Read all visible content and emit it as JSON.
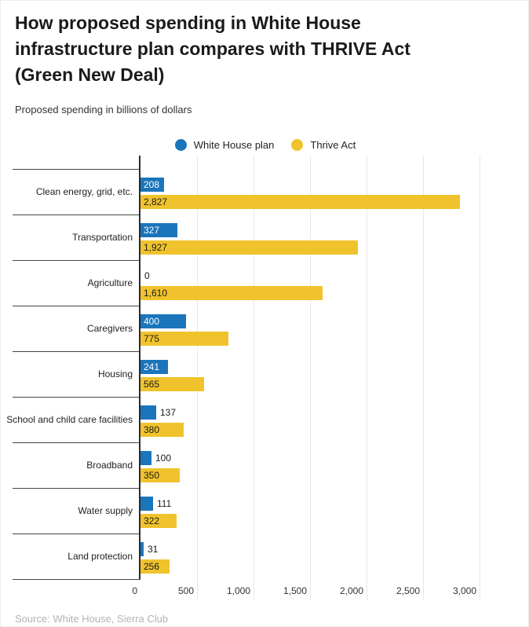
{
  "chart_data": {
    "type": "bar",
    "orientation": "horizontal",
    "title": "How proposed spending in White House infrastructure plan compares with THRIVE Act (Green New Deal)",
    "subtitle": "Proposed spending in billions of dollars",
    "categories": [
      "Clean energy, grid, etc.",
      "Transportation",
      "Agriculture",
      "Caregivers",
      "Housing",
      "School and child care facilities",
      "Broadband",
      "Water supply",
      "Land protection"
    ],
    "series": [
      {
        "name": "White House plan",
        "color": "#1b75bb",
        "values": [
          208,
          327,
          0,
          400,
          241,
          137,
          100,
          111,
          31
        ]
      },
      {
        "name": "Thrive Act",
        "color": "#f0c32c",
        "values": [
          2827,
          1927,
          1610,
          775,
          565,
          380,
          350,
          322,
          256
        ]
      }
    ],
    "value_labels": [
      [
        "208",
        "2,827"
      ],
      [
        "327",
        "1,927"
      ],
      [
        "0",
        "1,610"
      ],
      [
        "400",
        "775"
      ],
      [
        "241",
        "565"
      ],
      [
        "137",
        "380"
      ],
      [
        "100",
        "350"
      ],
      [
        "111",
        "322"
      ],
      [
        "31",
        "256"
      ]
    ],
    "xlim": [
      0,
      3000
    ],
    "x_ticks": [
      0,
      500,
      1000,
      1500,
      2000,
      2500,
      3000
    ],
    "x_tick_labels": [
      "0",
      "500",
      "1,000",
      "1,500",
      "2,000",
      "2,500",
      "3,000"
    ],
    "grid": true,
    "legend_position": "top-center"
  },
  "colors": {
    "white_house_bar": "#1b75bb",
    "thrive_bar": "#f0c32c",
    "label_inside_blue": "#ffffff",
    "label_dark": "#1a1a1a",
    "gridline": "#e8e8e8",
    "axis": "#2b2b2b",
    "separator": "#454545"
  },
  "source": "Source: White House, Sierra Club"
}
